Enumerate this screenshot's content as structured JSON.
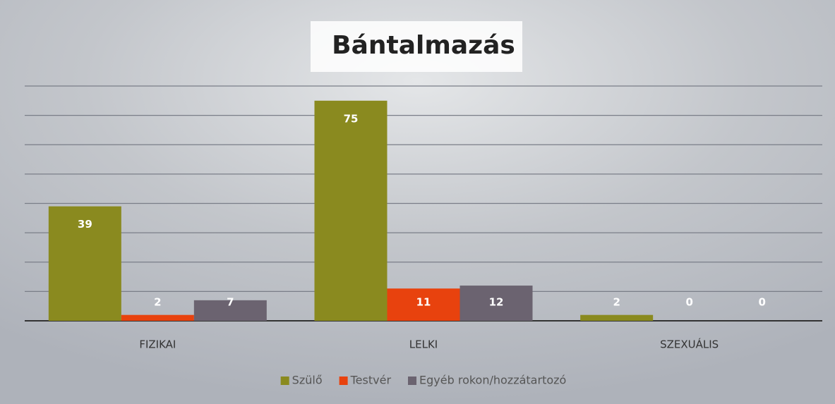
{
  "chart_data": {
    "type": "bar",
    "title": "Bántalmazás",
    "categories": [
      "FIZIKAI",
      "LELKI",
      "SZEXUÁLIS"
    ],
    "series": [
      {
        "name": "Szülő",
        "color": "#8a8a1f",
        "values": [
          39,
          75,
          2
        ]
      },
      {
        "name": "Testvér",
        "color": "#e8420e",
        "values": [
          2,
          11,
          0
        ]
      },
      {
        "name": "Egyéb rokon/hozzátartozó",
        "color": "#6b6370",
        "values": [
          7,
          12,
          0
        ]
      }
    ],
    "ylim": [
      0,
      80
    ],
    "yticks": [
      0,
      10,
      20,
      30,
      40,
      50,
      60,
      70,
      80
    ],
    "grid": true,
    "legend": "bottom"
  }
}
